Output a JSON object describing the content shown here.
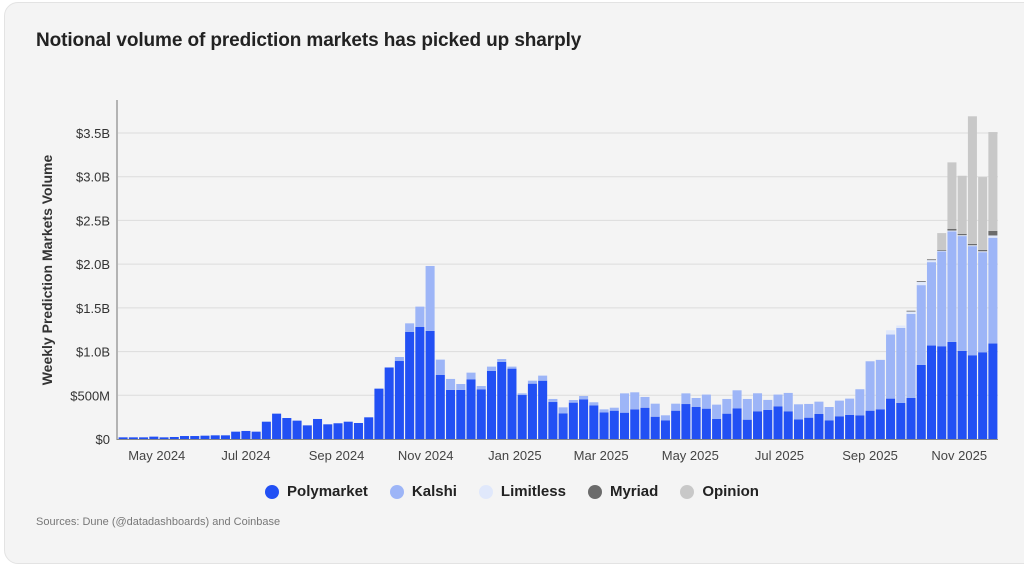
{
  "chart_data": {
    "type": "bar",
    "stacked": true,
    "title": "Notional volume of prediction markets has picked up sharply",
    "ylabel": "Weekly Prediction Markets Volume",
    "xlabel": "",
    "unit": "$M",
    "ylim": [
      0,
      3500
    ],
    "yticks": [
      {
        "value": 0,
        "label": "$0"
      },
      {
        "value": 500,
        "label": "$500M"
      },
      {
        "value": 1000,
        "label": "$1.0B"
      },
      {
        "value": 1500,
        "label": "$1.5B"
      },
      {
        "value": 2000,
        "label": "$2.0B"
      },
      {
        "value": 2500,
        "label": "$2.5B"
      },
      {
        "value": 3000,
        "label": "$3.0B"
      },
      {
        "value": 3500,
        "label": "$3.5B"
      }
    ],
    "xticks": [
      {
        "date": "2024-05-01",
        "label": "May 2024"
      },
      {
        "date": "2024-07-01",
        "label": "Jul 2024"
      },
      {
        "date": "2024-09-01",
        "label": "Sep 2024"
      },
      {
        "date": "2024-11-01",
        "label": "Nov 2024"
      },
      {
        "date": "2025-01-01",
        "label": "Jan 2025"
      },
      {
        "date": "2025-03-01",
        "label": "Mar 2025"
      },
      {
        "date": "2025-05-01",
        "label": "May 2025"
      },
      {
        "date": "2025-07-01",
        "label": "Jul 2025"
      },
      {
        "date": "2025-09-01",
        "label": "Sep 2025"
      },
      {
        "date": "2025-11-01",
        "label": "Nov 2025"
      }
    ],
    "grid": true,
    "legend_position": "bottom",
    "x": [
      "2024-04-08",
      "2024-04-15",
      "2024-04-22",
      "2024-04-29",
      "2024-05-06",
      "2024-05-13",
      "2024-05-20",
      "2024-05-27",
      "2024-06-03",
      "2024-06-10",
      "2024-06-17",
      "2024-06-24",
      "2024-07-01",
      "2024-07-08",
      "2024-07-15",
      "2024-07-22",
      "2024-07-29",
      "2024-08-05",
      "2024-08-12",
      "2024-08-19",
      "2024-08-26",
      "2024-09-02",
      "2024-09-09",
      "2024-09-16",
      "2024-09-23",
      "2024-09-30",
      "2024-10-07",
      "2024-10-14",
      "2024-10-21",
      "2024-10-28",
      "2024-11-04",
      "2024-11-11",
      "2024-11-18",
      "2024-11-25",
      "2024-12-02",
      "2024-12-09",
      "2024-12-16",
      "2024-12-23",
      "2024-12-30",
      "2025-01-06",
      "2025-01-13",
      "2025-01-20",
      "2025-01-27",
      "2025-02-03",
      "2025-02-10",
      "2025-02-17",
      "2025-02-24",
      "2025-03-03",
      "2025-03-10",
      "2025-03-17",
      "2025-03-24",
      "2025-03-31",
      "2025-04-07",
      "2025-04-14",
      "2025-04-21",
      "2025-04-28",
      "2025-05-05",
      "2025-05-12",
      "2025-05-19",
      "2025-05-26",
      "2025-06-02",
      "2025-06-09",
      "2025-06-16",
      "2025-06-23",
      "2025-06-30",
      "2025-07-07",
      "2025-07-14",
      "2025-07-21",
      "2025-07-28",
      "2025-08-04",
      "2025-08-11",
      "2025-08-18",
      "2025-08-25",
      "2025-09-01",
      "2025-09-08",
      "2025-09-15",
      "2025-09-22",
      "2025-09-29",
      "2025-10-06",
      "2025-10-13",
      "2025-10-20",
      "2025-10-27",
      "2025-11-03",
      "2025-11-10",
      "2025-11-17",
      "2025-11-24"
    ],
    "series": [
      {
        "name": "Polymarket",
        "color": "#2250f4",
        "values": [
          19,
          19,
          19,
          27,
          19,
          23,
          34,
          34,
          38,
          42,
          42,
          84,
          92,
          84,
          198,
          290,
          240,
          210,
          156,
          229,
          168,
          180,
          198,
          183,
          248,
          576,
          818,
          892,
          1224,
          1281,
          1236,
          732,
          561,
          561,
          683,
          568,
          778,
          881,
          805,
          503,
          633,
          667,
          423,
          294,
          416,
          454,
          385,
          305,
          324,
          301,
          339,
          358,
          255,
          214,
          324,
          400,
          366,
          347,
          229,
          290,
          351,
          221,
          317,
          332,
          374,
          317,
          225,
          244,
          286,
          214,
          260,
          275,
          271,
          324,
          340,
          462,
          412,
          469,
          847,
          1069,
          1061,
          1111,
          1008,
          958,
          992,
          1092
        ]
      },
      {
        "name": "Kalshi",
        "color": "#9db5f7",
        "values": [
          0,
          0,
          0,
          0,
          0,
          0,
          0,
          0,
          0,
          0,
          0,
          0,
          0,
          0,
          0,
          0,
          0,
          0,
          0,
          0,
          0,
          0,
          0,
          0,
          0,
          0,
          0,
          46,
          99,
          233,
          743,
          176,
          126,
          68,
          76,
          38,
          50,
          34,
          23,
          19,
          34,
          58,
          35,
          68,
          30,
          38,
          35,
          34,
          34,
          221,
          195,
          123,
          149,
          57,
          80,
          122,
          103,
          161,
          164,
          168,
          206,
          237,
          206,
          115,
          134,
          210,
          172,
          157,
          141,
          152,
          179,
          187,
          298,
          565,
          565,
          733,
          859,
          962,
          913,
          954,
          1084,
          1263,
          1313,
          1248,
          1145,
          1210
        ]
      },
      {
        "name": "Limitless",
        "color": "#e0e8fb",
        "values": [
          0,
          0,
          0,
          0,
          0,
          0,
          0,
          0,
          0,
          0,
          0,
          0,
          0,
          0,
          0,
          0,
          0,
          0,
          0,
          0,
          0,
          0,
          0,
          0,
          0,
          0,
          0,
          0,
          0,
          0,
          0,
          0,
          0,
          0,
          0,
          0,
          0,
          0,
          0,
          0,
          0,
          0,
          0,
          0,
          0,
          0,
          0,
          0,
          0,
          0,
          0,
          0,
          0,
          0,
          0,
          0,
          0,
          0,
          0,
          0,
          0,
          0,
          0,
          0,
          0,
          0,
          0,
          0,
          0,
          0,
          0,
          0,
          0,
          0,
          0,
          49,
          27,
          31,
          42,
          27,
          10,
          10,
          10,
          10,
          10,
          26
        ]
      },
      {
        "name": "Myriad",
        "color": "#6b6b6b",
        "values": [
          0,
          0,
          0,
          0,
          0,
          0,
          0,
          0,
          0,
          0,
          0,
          0,
          0,
          0,
          0,
          0,
          0,
          0,
          0,
          0,
          0,
          0,
          0,
          0,
          0,
          0,
          0,
          0,
          0,
          0,
          0,
          0,
          0,
          0,
          0,
          0,
          0,
          0,
          0,
          0,
          0,
          0,
          0,
          0,
          0,
          0,
          0,
          0,
          0,
          0,
          0,
          0,
          0,
          0,
          0,
          0,
          0,
          0,
          0,
          0,
          0,
          0,
          0,
          0,
          0,
          0,
          0,
          0,
          0,
          0,
          0,
          0,
          0,
          0,
          0,
          0,
          0,
          5,
          5,
          5,
          5,
          20,
          15,
          15,
          15,
          53
        ]
      },
      {
        "name": "Opinion",
        "color": "#c8c8c8",
        "values": [
          0,
          0,
          0,
          0,
          0,
          0,
          0,
          0,
          0,
          0,
          0,
          0,
          0,
          0,
          0,
          0,
          0,
          0,
          0,
          0,
          0,
          0,
          0,
          0,
          0,
          0,
          0,
          0,
          0,
          0,
          0,
          0,
          0,
          0,
          0,
          0,
          0,
          0,
          0,
          0,
          0,
          0,
          0,
          0,
          0,
          0,
          0,
          0,
          0,
          0,
          0,
          0,
          0,
          0,
          0,
          0,
          0,
          0,
          0,
          0,
          0,
          0,
          0,
          0,
          0,
          0,
          0,
          0,
          0,
          0,
          0,
          0,
          0,
          0,
          0,
          0,
          0,
          0,
          0,
          0,
          195,
          760,
          665,
          1460,
          834,
          1130
        ]
      }
    ],
    "source": "Sources: Dune (@datadashboards) and Coinbase"
  }
}
